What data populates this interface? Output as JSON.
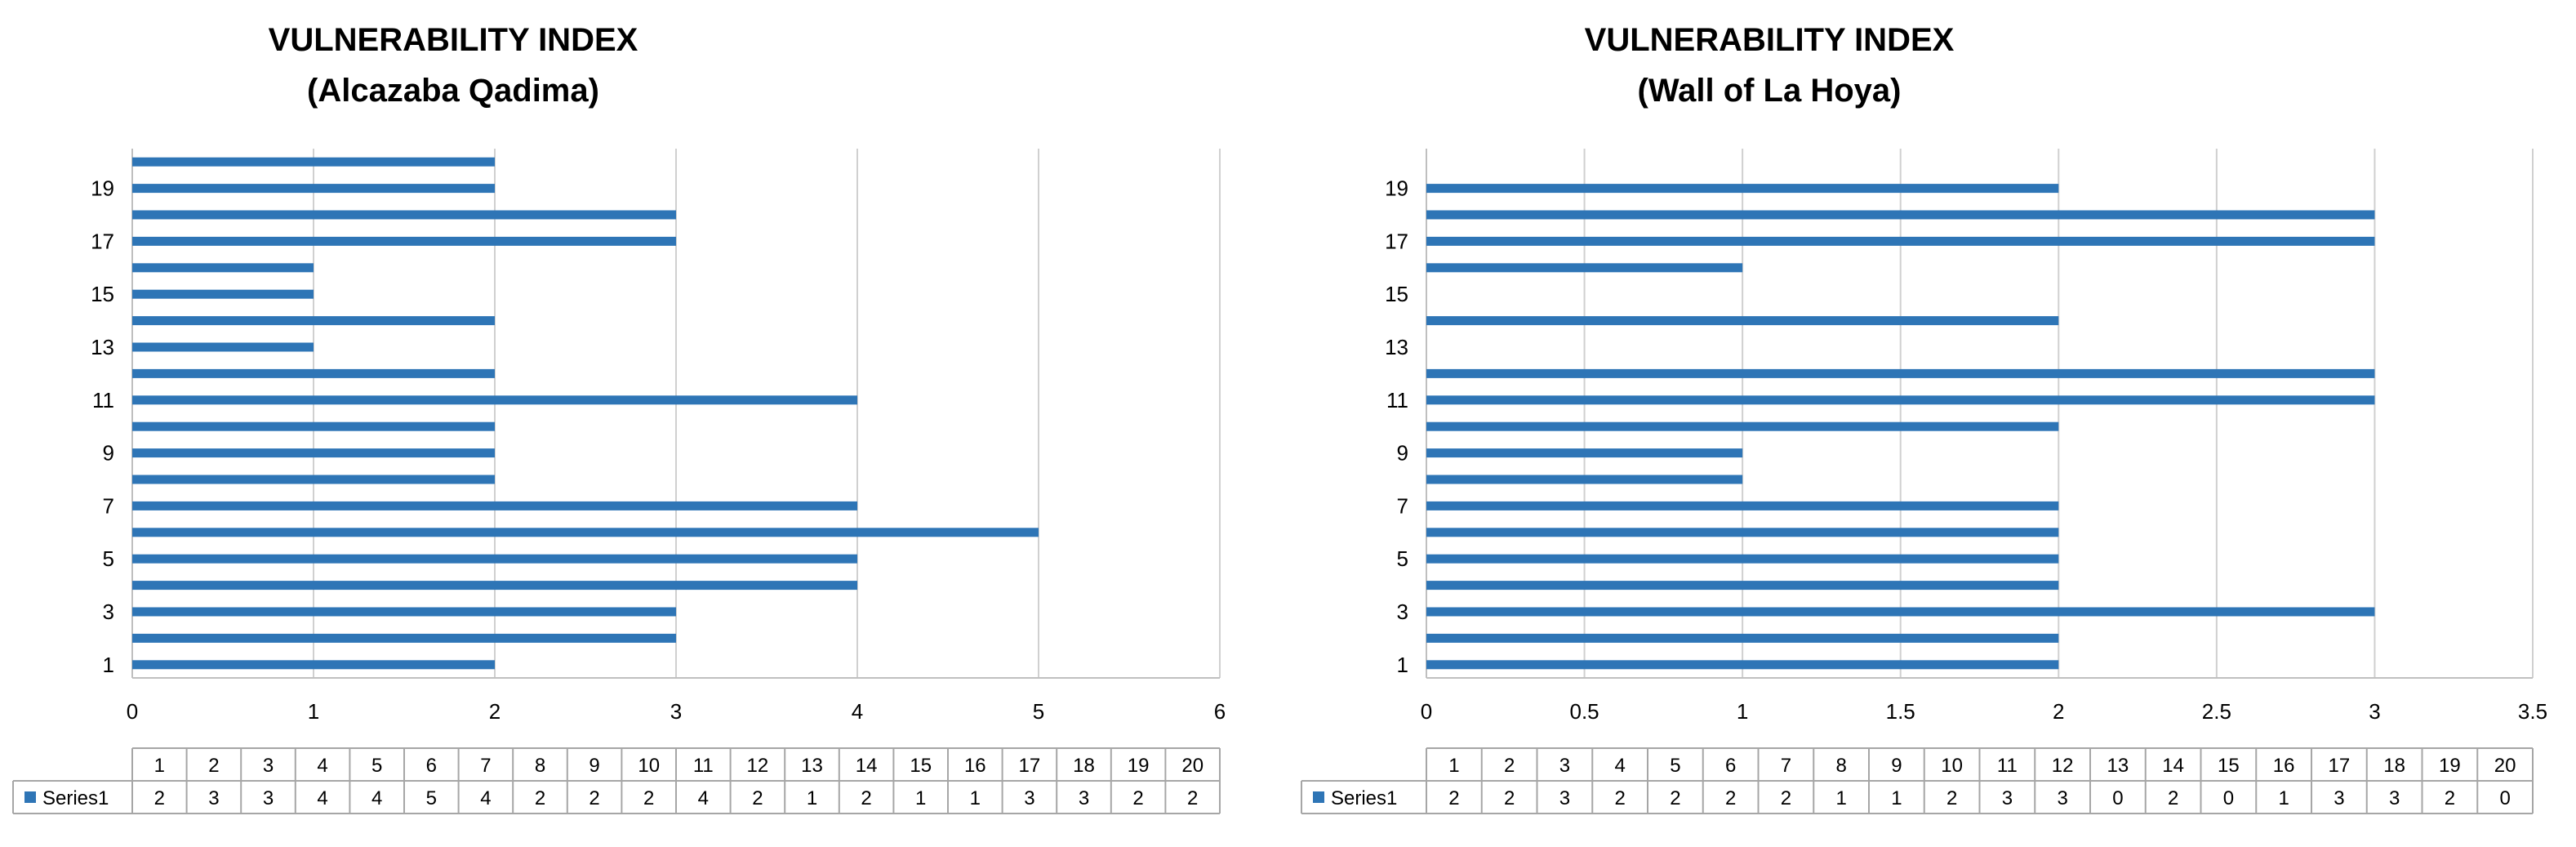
{
  "chart_data": [
    {
      "type": "bar",
      "orientation": "horizontal",
      "title": "VULNERABILITY INDEX",
      "subtitle": "(Alcazaba Qadima)",
      "categories": [
        "1",
        "2",
        "3",
        "4",
        "5",
        "6",
        "7",
        "8",
        "9",
        "10",
        "11",
        "12",
        "13",
        "14",
        "15",
        "16",
        "17",
        "18",
        "19",
        "20"
      ],
      "y_tick_labels": [
        "1",
        "3",
        "5",
        "7",
        "9",
        "11",
        "13",
        "15",
        "17",
        "19"
      ],
      "series": [
        {
          "name": "Series1",
          "values": [
            2,
            3,
            3,
            4,
            4,
            5,
            4,
            2,
            2,
            2,
            4,
            2,
            1,
            2,
            1,
            1,
            3,
            3,
            2,
            2
          ]
        }
      ],
      "x_ticks": [
        "0",
        "1",
        "2",
        "3",
        "4",
        "5",
        "6"
      ],
      "xlim": [
        0,
        6
      ],
      "grid": "vertical",
      "legend": "data-table-bottom",
      "color": "#2e75b6"
    },
    {
      "type": "bar",
      "orientation": "horizontal",
      "title": "VULNERABILITY INDEX",
      "subtitle": "(Wall of La Hoya)",
      "categories": [
        "1",
        "2",
        "3",
        "4",
        "5",
        "6",
        "7",
        "8",
        "9",
        "10",
        "11",
        "12",
        "13",
        "14",
        "15",
        "16",
        "17",
        "18",
        "19",
        "20"
      ],
      "y_tick_labels": [
        "1",
        "3",
        "5",
        "7",
        "9",
        "11",
        "13",
        "15",
        "17",
        "19"
      ],
      "series": [
        {
          "name": "Series1",
          "values": [
            2,
            2,
            3,
            2,
            2,
            2,
            2,
            1,
            1,
            2,
            3,
            3,
            0,
            2,
            0,
            1,
            3,
            3,
            2,
            0
          ]
        }
      ],
      "x_ticks": [
        "0",
        "0.5",
        "1",
        "1.5",
        "2",
        "2.5",
        "3",
        "3.5"
      ],
      "xlim": [
        0,
        3.5
      ],
      "grid": "vertical",
      "legend": "data-table-bottom",
      "color": "#2e75b6"
    }
  ]
}
